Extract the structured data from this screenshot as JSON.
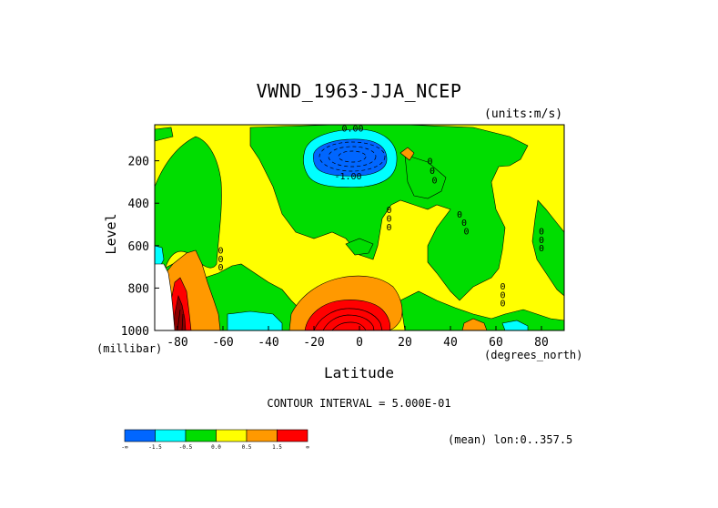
{
  "chart_data": {
    "type": "heatmap",
    "title": "VWND_1963-JJA_NCEP",
    "units": "(units:m/s)",
    "xlabel": "Latitude",
    "xunit": "(degrees_north)",
    "ylabel": "Level",
    "yunit": "(millibar)",
    "xlim": [
      -90,
      90
    ],
    "ylim": [
      1000,
      30
    ],
    "x_ticks": [
      -80,
      -60,
      -40,
      -20,
      0,
      20,
      40,
      60,
      80
    ],
    "y_ticks": [
      200,
      400,
      600,
      800,
      1000
    ],
    "contour_labels": [
      {
        "text": "0.00",
        "lat": -3,
        "lev": 45
      },
      {
        "text": "-1.00",
        "lat": -5,
        "lev": 270
      },
      {
        "text": "0",
        "lat": -61,
        "lev": 620
      },
      {
        "text": "0",
        "lat": -61,
        "lev": 660
      },
      {
        "text": "0",
        "lat": -61,
        "lev": 700
      },
      {
        "text": "0",
        "lat": 13,
        "lev": 430
      },
      {
        "text": "0",
        "lat": 13,
        "lev": 470
      },
      {
        "text": "0",
        "lat": 13,
        "lev": 510
      },
      {
        "text": "0",
        "lat": 31,
        "lev": 200
      },
      {
        "text": "0",
        "lat": 32,
        "lev": 245
      },
      {
        "text": "0",
        "lat": 33,
        "lev": 290
      },
      {
        "text": "0",
        "lat": 44,
        "lev": 450
      },
      {
        "text": "0",
        "lat": 46,
        "lev": 490
      },
      {
        "text": "0",
        "lat": 47,
        "lev": 530
      },
      {
        "text": "0",
        "lat": 63,
        "lev": 790
      },
      {
        "text": "0",
        "lat": 63,
        "lev": 830
      },
      {
        "text": "0",
        "lat": 63,
        "lev": 870
      },
      {
        "text": "0",
        "lat": 80,
        "lev": 530
      },
      {
        "text": "0",
        "lat": 80,
        "lev": 570
      },
      {
        "text": "0",
        "lat": 80,
        "lev": 610
      }
    ],
    "contour_interval": "CONTOUR INTERVAL = 5.000E-01",
    "legend": {
      "bins": [
        {
          "color": "#0066ff"
        },
        {
          "color": "#00ffff"
        },
        {
          "color": "#00dd00"
        },
        {
          "color": "#ffff00"
        },
        {
          "color": "#ff9900"
        },
        {
          "color": "#ff0000"
        }
      ],
      "labels": [
        "-∞",
        "-1.5",
        "-0.5",
        "0.0",
        "0.5",
        "1.5",
        "∞"
      ]
    },
    "mean_label": "(mean) lon:0..357.5",
    "colors": {
      "blue": "#0066ff",
      "cyan": "#00ffff",
      "green": "#00dd00",
      "yellow": "#ffff00",
      "orange": "#ff9900",
      "red": "#ff0000",
      "darkred": "#8b0000"
    }
  }
}
